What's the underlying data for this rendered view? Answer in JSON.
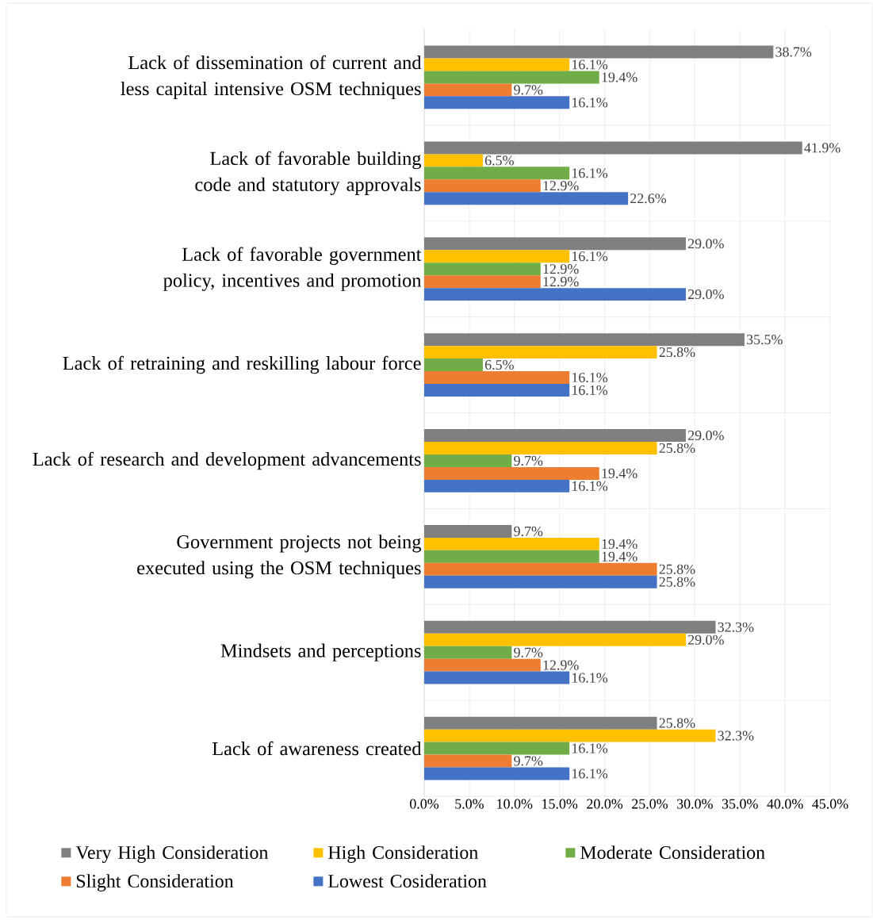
{
  "chart_data": {
    "type": "bar",
    "orientation": "horizontal",
    "categories": [
      "Lack of dissemination of current and less capital intensive OSM techniques",
      "Lack of favorable building code and statutory approvals",
      "Lack of favorable government policy, incentives and promotion",
      "Lack of retraining and reskilling labour force",
      "Lack of research and development advancements",
      "Government projects not being executed using the OSM techniques",
      "Mindsets and perceptions",
      "Lack of awareness created"
    ],
    "series": [
      {
        "name": "Very High Consideration",
        "color": "#7f7f7f",
        "values": [
          38.7,
          41.9,
          29.0,
          35.5,
          29.0,
          9.7,
          32.3,
          25.8
        ],
        "value_labels": [
          "38.7%",
          "41.9%",
          "29.0%",
          "35.5%",
          "29.0%",
          "9.7%",
          "32.3%",
          "25.8%"
        ]
      },
      {
        "name": "High Consideration",
        "color": "#ffc000",
        "values": [
          16.1,
          6.5,
          16.1,
          25.8,
          25.8,
          19.4,
          29.0,
          32.3
        ],
        "value_labels": [
          "16.1%",
          "6.5%",
          "16.1%",
          "25.8%",
          "25.8%",
          "19.4%",
          "29.0%",
          "32.3%"
        ]
      },
      {
        "name": "Moderate Consideration",
        "color": "#70ad47",
        "values": [
          19.4,
          16.1,
          12.9,
          6.5,
          9.7,
          19.4,
          9.7,
          16.1
        ],
        "value_labels": [
          "19.4%",
          "16.1%",
          "12.9%",
          "6.5%",
          "9.7%",
          "19.4%",
          "9.7%",
          "16.1%"
        ]
      },
      {
        "name": "Slight Consideration",
        "color": "#ed7d31",
        "values": [
          9.7,
          12.9,
          12.9,
          16.1,
          19.4,
          25.8,
          12.9,
          9.7
        ],
        "value_labels": [
          "9.7%",
          "12.9%",
          "12.9%",
          "16.1%",
          "19.4%",
          "25.8%",
          "12.9%",
          "9.7%"
        ]
      },
      {
        "name": "Lowest Cosideration",
        "color": "#4472c4",
        "values": [
          16.1,
          22.6,
          29.0,
          16.1,
          16.1,
          25.8,
          16.1,
          16.1
        ],
        "value_labels": [
          "16.1%",
          "22.6%",
          "29.0%",
          "16.1%",
          "16.1%",
          "25.8%",
          "16.1%",
          "16.1%"
        ]
      }
    ],
    "xlim": [
      0,
      45
    ],
    "xticks": [
      {
        "value": 0,
        "label": "0.0%"
      },
      {
        "value": 5,
        "label": "5.0%"
      },
      {
        "value": 10,
        "label": "10.0%"
      },
      {
        "value": 15,
        "label": "15.0%"
      },
      {
        "value": 20,
        "label": "20.0%"
      },
      {
        "value": 25,
        "label": "25.0%"
      },
      {
        "value": 30,
        "label": "30.0%"
      },
      {
        "value": 35,
        "label": "35.0%"
      },
      {
        "value": 40,
        "label": "40.0%"
      },
      {
        "value": 45,
        "label": "45.0%"
      }
    ],
    "grid": true,
    "legend": "bottom"
  }
}
